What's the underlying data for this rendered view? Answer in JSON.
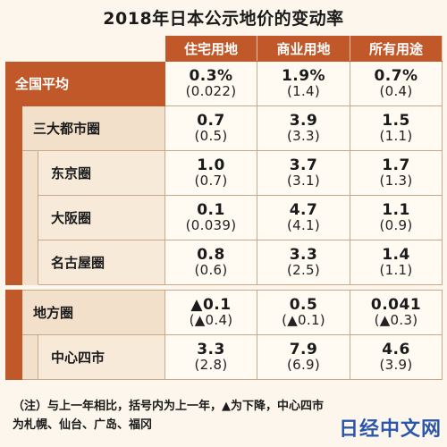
{
  "title": "2018年日本公示地价的变动率",
  "columns": [
    "住宅用地",
    "商业用地",
    "所有用途"
  ],
  "rows": [
    {
      "label": "全国平均",
      "values": [
        {
          "main": "0.3%",
          "paren": "(0.022)"
        },
        {
          "main": "1.9%",
          "paren": "(1.4)"
        },
        {
          "main": "0.7%",
          "paren": "(0.4)"
        }
      ]
    },
    {
      "label": "三大都市圈",
      "values": [
        {
          "main": "0.7",
          "paren": "(0.5)"
        },
        {
          "main": "3.9",
          "paren": "(3.3)"
        },
        {
          "main": "1.5",
          "paren": "(1.1)"
        }
      ]
    },
    {
      "label": "东京圈",
      "values": [
        {
          "main": "1.0",
          "paren": "(0.7)"
        },
        {
          "main": "3.7",
          "paren": "(3.1)"
        },
        {
          "main": "1.7",
          "paren": "(1.3)"
        }
      ]
    },
    {
      "label": "大阪圈",
      "values": [
        {
          "main": "0.1",
          "paren": "(0.039)"
        },
        {
          "main": "4.7",
          "paren": "(4.1)"
        },
        {
          "main": "1.1",
          "paren": "(0.9)"
        }
      ]
    },
    {
      "label": "名古屋圈",
      "values": [
        {
          "main": "0.8",
          "paren": "(0.6)"
        },
        {
          "main": "3.3",
          "paren": "(2.5)"
        },
        {
          "main": "1.4",
          "paren": "(1.1)"
        }
      ]
    },
    {
      "label": "地方圈",
      "values": [
        {
          "main": "▲0.1",
          "paren": "(▲0.4)"
        },
        {
          "main": "0.5",
          "paren": "(▲0.1)"
        },
        {
          "main": "0.041",
          "paren": "(▲0.3)"
        }
      ]
    },
    {
      "label": "中心四市",
      "values": [
        {
          "main": "3.3",
          "paren": "(2.8)"
        },
        {
          "main": "7.9",
          "paren": "(6.9)"
        },
        {
          "main": "4.6",
          "paren": "(3.9)"
        }
      ]
    }
  ],
  "note_line1": "（注）与上一年相比，括号内为上一年，▲为下降，中心四市",
  "note_line2": "为札幌、仙台、广岛、福冈",
  "watermark": "日经中文网"
}
